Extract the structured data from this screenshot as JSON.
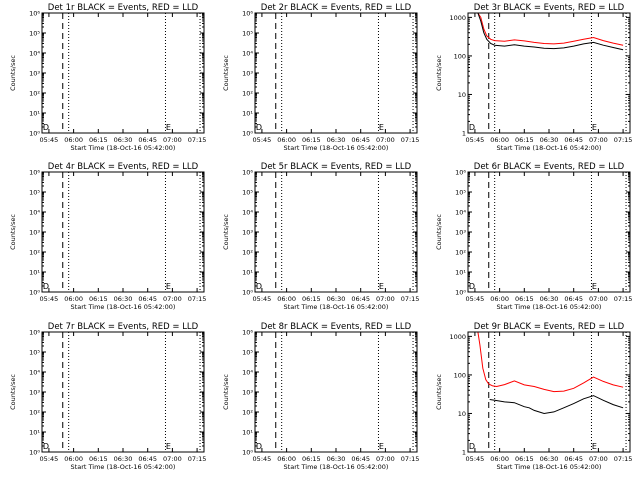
{
  "figure": {
    "background": "#ffffff",
    "axis_color": "#000000"
  },
  "chart_data": [
    {
      "id": "p1",
      "type": "line",
      "title": "Det 1r BLACK = Events, RED = LLD",
      "xlabel": "Start Time (18-Oct-16 05:42:00)",
      "ylabel": "Counts/sec",
      "xlim": [
        -0.07,
        1.57
      ],
      "ylim": [
        1,
        1000000
      ],
      "yscale": "log",
      "xticks": [
        0,
        0.25,
        0.5,
        0.75,
        1.0,
        1.25,
        1.5
      ],
      "xtick_labels": [
        "05:45",
        "06:00",
        "06:15",
        "06:30",
        "06:45",
        "07:00",
        "07:15"
      ],
      "yticks": [
        1,
        10,
        100,
        1000,
        10000,
        100000,
        1000000
      ],
      "ytick_labels": [
        "10⁰",
        "10¹",
        "10²",
        "10³",
        "10⁴",
        "10⁵",
        "10⁶"
      ],
      "dashed_line_x": 0.14,
      "dotted_lines_x": [
        0.2,
        1.18,
        1.53
      ],
      "markers": [
        {
          "text": "D",
          "x": -0.03
        },
        {
          "text": "E",
          "x": 1.21
        }
      ],
      "series": []
    },
    {
      "id": "p2",
      "type": "line",
      "title": "Det 2r BLACK = Events, RED = LLD",
      "xlabel": "Start Time (18-Oct-16 05:42:00)",
      "ylabel": "Counts/sec",
      "xlim": [
        -0.07,
        1.57
      ],
      "ylim": [
        1,
        1000000
      ],
      "yscale": "log",
      "xticks": [
        0,
        0.25,
        0.5,
        0.75,
        1.0,
        1.25,
        1.5
      ],
      "xtick_labels": [
        "05:45",
        "06:00",
        "06:15",
        "06:30",
        "06:45",
        "07:00",
        "07:15"
      ],
      "yticks": [
        1,
        10,
        100,
        1000,
        10000,
        100000,
        1000000
      ],
      "ytick_labels": [
        "10⁰",
        "10¹",
        "10²",
        "10³",
        "10⁴",
        "10⁵",
        "10⁶"
      ],
      "dashed_line_x": 0.14,
      "dotted_lines_x": [
        0.2,
        1.18,
        1.53
      ],
      "markers": [
        {
          "text": "D",
          "x": -0.03
        },
        {
          "text": "E",
          "x": 1.21
        }
      ],
      "series": []
    },
    {
      "id": "p3",
      "type": "line",
      "title": "Det 3r BLACK = Events, RED = LLD",
      "xlabel": "Start Time (18-Oct-16 05:42:00)",
      "ylabel": "Counts/sec",
      "xlim": [
        -0.07,
        1.57
      ],
      "ylim": [
        1,
        1300
      ],
      "yscale": "log",
      "xticks": [
        0,
        0.25,
        0.5,
        0.75,
        1.0,
        1.25,
        1.5
      ],
      "xtick_labels": [
        "05:45",
        "06:00",
        "06:15",
        "06:30",
        "06:45",
        "07:00",
        "07:15"
      ],
      "yticks": [
        1,
        10,
        100,
        1000
      ],
      "ytick_labels": [
        "1",
        "10",
        "100",
        "1000"
      ],
      "dashed_line_x": 0.14,
      "dotted_lines_x": [
        0.2,
        1.18,
        1.53
      ],
      "markers": [
        {
          "text": "D",
          "x": -0.03
        },
        {
          "text": "E",
          "x": 1.21
        }
      ],
      "series": [
        {
          "color": "#ff0000",
          "x": [
            0.03,
            0.06,
            0.09,
            0.12,
            0.16,
            0.2,
            0.3,
            0.4,
            0.5,
            0.6,
            0.7,
            0.8,
            0.9,
            1.0,
            1.1,
            1.2,
            1.3,
            1.4,
            1.5
          ],
          "y": [
            1300,
            1000,
            500,
            330,
            270,
            250,
            240,
            260,
            245,
            225,
            210,
            205,
            215,
            240,
            270,
            300,
            250,
            215,
            190
          ]
        },
        {
          "color": "#000000",
          "x": [
            0.03,
            0.06,
            0.09,
            0.12,
            0.16,
            0.2,
            0.3,
            0.4,
            0.5,
            0.6,
            0.7,
            0.8,
            0.9,
            1.0,
            1.1,
            1.2,
            1.3,
            1.4,
            1.5
          ],
          "y": [
            1300,
            800,
            400,
            270,
            210,
            190,
            180,
            195,
            180,
            170,
            158,
            155,
            162,
            180,
            205,
            225,
            190,
            165,
            145
          ]
        }
      ]
    },
    {
      "id": "p4",
      "type": "line",
      "title": "Det 4r BLACK = Events, RED = LLD",
      "xlabel": "Start Time (18-Oct-16 05:42:00)",
      "ylabel": "Counts/sec",
      "xlim": [
        -0.07,
        1.57
      ],
      "ylim": [
        1,
        1000000
      ],
      "yscale": "log",
      "xticks": [
        0,
        0.25,
        0.5,
        0.75,
        1.0,
        1.25,
        1.5
      ],
      "xtick_labels": [
        "05:45",
        "06:00",
        "06:15",
        "06:30",
        "06:45",
        "07:00",
        "07:15"
      ],
      "yticks": [
        1,
        10,
        100,
        1000,
        10000,
        100000,
        1000000
      ],
      "ytick_labels": [
        "10⁰",
        "10¹",
        "10²",
        "10³",
        "10⁴",
        "10⁵",
        "10⁶"
      ],
      "dashed_line_x": 0.14,
      "dotted_lines_x": [
        0.2,
        1.18,
        1.53
      ],
      "markers": [
        {
          "text": "D",
          "x": -0.03
        },
        {
          "text": "E",
          "x": 1.21
        }
      ],
      "series": []
    },
    {
      "id": "p5",
      "type": "line",
      "title": "Det 5r BLACK = Events, RED = LLD",
      "xlabel": "Start Time (18-Oct-16 05:42:00)",
      "ylabel": "Counts/sec",
      "xlim": [
        -0.07,
        1.57
      ],
      "ylim": [
        1,
        1000000
      ],
      "yscale": "log",
      "xticks": [
        0,
        0.25,
        0.5,
        0.75,
        1.0,
        1.25,
        1.5
      ],
      "xtick_labels": [
        "05:45",
        "06:00",
        "06:15",
        "06:30",
        "06:45",
        "07:00",
        "07:15"
      ],
      "yticks": [
        1,
        10,
        100,
        1000,
        10000,
        100000,
        1000000
      ],
      "ytick_labels": [
        "10⁰",
        "10¹",
        "10²",
        "10³",
        "10⁴",
        "10⁵",
        "10⁶"
      ],
      "dashed_line_x": 0.14,
      "dotted_lines_x": [
        0.2,
        1.18,
        1.53
      ],
      "markers": [
        {
          "text": "D",
          "x": -0.03
        },
        {
          "text": "E",
          "x": 1.21
        }
      ],
      "series": []
    },
    {
      "id": "p6",
      "type": "line",
      "title": "Det 6r BLACK = Events, RED = LLD",
      "xlabel": "Start Time (18-Oct-16 05:42:00)",
      "ylabel": "Counts/sec",
      "xlim": [
        -0.07,
        1.57
      ],
      "ylim": [
        1,
        1000000
      ],
      "yscale": "log",
      "xticks": [
        0,
        0.25,
        0.5,
        0.75,
        1.0,
        1.25,
        1.5
      ],
      "xtick_labels": [
        "05:45",
        "06:00",
        "06:15",
        "06:30",
        "06:45",
        "07:00",
        "07:15"
      ],
      "yticks": [
        1,
        10,
        100,
        1000,
        10000,
        100000,
        1000000
      ],
      "ytick_labels": [
        "10⁰",
        "10¹",
        "10²",
        "10³",
        "10⁴",
        "10⁵",
        "10⁶"
      ],
      "dashed_line_x": 0.14,
      "dotted_lines_x": [
        0.2,
        1.18,
        1.53
      ],
      "markers": [
        {
          "text": "D",
          "x": -0.03
        },
        {
          "text": "E",
          "x": 1.21
        }
      ],
      "series": []
    },
    {
      "id": "p7",
      "type": "line",
      "title": "Det 7r BLACK = Events, RED = LLD",
      "xlabel": "Start Time (18-Oct-16 05:42:00)",
      "ylabel": "Counts/sec",
      "xlim": [
        -0.07,
        1.57
      ],
      "ylim": [
        1,
        1000000
      ],
      "yscale": "log",
      "xticks": [
        0,
        0.25,
        0.5,
        0.75,
        1.0,
        1.25,
        1.5
      ],
      "xtick_labels": [
        "05:45",
        "06:00",
        "06:15",
        "06:30",
        "06:45",
        "07:00",
        "07:15"
      ],
      "yticks": [
        1,
        10,
        100,
        1000,
        10000,
        100000,
        1000000
      ],
      "ytick_labels": [
        "10⁰",
        "10¹",
        "10²",
        "10³",
        "10⁴",
        "10⁵",
        "10⁶"
      ],
      "dashed_line_x": 0.14,
      "dotted_lines_x": [
        0.2,
        1.18,
        1.53
      ],
      "markers": [
        {
          "text": "D",
          "x": -0.03
        },
        {
          "text": "E",
          "x": 1.21
        }
      ],
      "series": []
    },
    {
      "id": "p8",
      "type": "line",
      "title": "Det 8r BLACK = Events, RED = LLD",
      "xlabel": "Start Time (18-Oct-16 05:42:00)",
      "ylabel": "Counts/sec",
      "xlim": [
        -0.07,
        1.57
      ],
      "ylim": [
        1,
        1000000
      ],
      "yscale": "log",
      "xticks": [
        0,
        0.25,
        0.5,
        0.75,
        1.0,
        1.25,
        1.5
      ],
      "xtick_labels": [
        "05:45",
        "06:00",
        "06:15",
        "06:30",
        "06:45",
        "07:00",
        "07:15"
      ],
      "yticks": [
        1,
        10,
        100,
        1000,
        10000,
        100000,
        1000000
      ],
      "ytick_labels": [
        "10⁰",
        "10¹",
        "10²",
        "10³",
        "10⁴",
        "10⁵",
        "10⁶"
      ],
      "dashed_line_x": 0.14,
      "dotted_lines_x": [
        0.2,
        1.18,
        1.53
      ],
      "markers": [
        {
          "text": "D",
          "x": -0.03
        },
        {
          "text": "E",
          "x": 1.21
        }
      ],
      "series": []
    },
    {
      "id": "p9",
      "type": "line",
      "title": "Det 9r BLACK = Events, RED = LLD",
      "xlabel": "Start Time (18-Oct-16 05:42:00)",
      "ylabel": "Counts/sec",
      "xlim": [
        -0.07,
        1.57
      ],
      "ylim": [
        1,
        1300
      ],
      "yscale": "log",
      "xticks": [
        0,
        0.25,
        0.5,
        0.75,
        1.0,
        1.25,
        1.5
      ],
      "xtick_labels": [
        "05:45",
        "06:00",
        "06:15",
        "06:30",
        "06:45",
        "07:00",
        "07:15"
      ],
      "yticks": [
        1,
        10,
        100,
        1000
      ],
      "ytick_labels": [
        "1",
        "10",
        "100",
        "1000"
      ],
      "dashed_line_x": 0.14,
      "dotted_lines_x": [
        0.2,
        1.18,
        1.53
      ],
      "markers": [
        {
          "text": "D",
          "x": -0.03
        },
        {
          "text": "E",
          "x": 1.21
        }
      ],
      "series": [
        {
          "color": "#ff0000",
          "x": [
            0.03,
            0.05,
            0.08,
            0.11,
            0.14,
            0.18,
            0.22,
            0.3,
            0.4,
            0.5,
            0.6,
            0.7,
            0.8,
            0.9,
            1.0,
            1.1,
            1.2,
            1.3,
            1.4,
            1.5
          ],
          "y": [
            1300,
            600,
            150,
            75,
            58,
            52,
            50,
            56,
            70,
            55,
            50,
            42,
            37,
            38,
            45,
            62,
            88,
            68,
            55,
            48
          ]
        },
        {
          "color": "#000000",
          "x": [
            0.15,
            0.2,
            0.3,
            0.4,
            0.5,
            0.55,
            0.6,
            0.7,
            0.8,
            0.9,
            1.0,
            1.1,
            1.2,
            1.3,
            1.4,
            1.5
          ],
          "y": [
            23,
            22,
            20,
            19,
            15,
            14,
            12,
            10,
            11,
            14,
            18,
            24,
            29,
            22,
            17,
            14
          ]
        }
      ]
    }
  ]
}
